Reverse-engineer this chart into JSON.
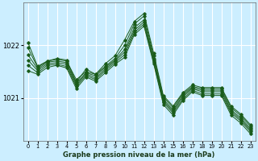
{
  "title": "Graphe pression niveau de la mer (hPa)",
  "bg_color": "#cceeff",
  "grid_color": "#ffffff",
  "line_color": "#1a5c1a",
  "x_ticks": [
    0,
    1,
    2,
    3,
    4,
    5,
    6,
    7,
    8,
    9,
    10,
    11,
    12,
    13,
    14,
    15,
    16,
    17,
    18,
    19,
    20,
    21,
    22,
    23
  ],
  "ylim": [
    1020.2,
    1022.8
  ],
  "yticks": [
    1021.0,
    1022.0
  ],
  "series": [
    [
      1022.05,
      1021.6,
      1021.7,
      1021.75,
      1021.72,
      1021.3,
      1021.55,
      1021.45,
      1021.65,
      1021.8,
      1022.1,
      1022.45,
      1022.6,
      1021.85,
      1021.05,
      1020.85,
      1021.1,
      1021.25,
      1021.2,
      1021.2,
      1021.2,
      1020.85,
      1020.7,
      1020.5
    ],
    [
      1021.95,
      1021.58,
      1021.7,
      1021.73,
      1021.7,
      1021.35,
      1021.5,
      1021.45,
      1021.6,
      1021.75,
      1022.0,
      1022.4,
      1022.55,
      1021.8,
      1021.02,
      1020.82,
      1021.08,
      1021.22,
      1021.18,
      1021.18,
      1021.18,
      1020.82,
      1020.67,
      1020.47
    ],
    [
      1021.82,
      1021.55,
      1021.68,
      1021.7,
      1021.67,
      1021.28,
      1021.48,
      1021.42,
      1021.58,
      1021.72,
      1021.92,
      1022.33,
      1022.48,
      1021.75,
      1020.98,
      1020.78,
      1021.05,
      1021.2,
      1021.15,
      1021.15,
      1021.15,
      1020.78,
      1020.63,
      1020.43
    ],
    [
      1021.72,
      1021.52,
      1021.65,
      1021.67,
      1021.64,
      1021.25,
      1021.46,
      1021.38,
      1021.55,
      1021.7,
      1021.87,
      1022.28,
      1022.44,
      1021.72,
      1020.95,
      1020.75,
      1021.02,
      1021.18,
      1021.12,
      1021.12,
      1021.12,
      1020.75,
      1020.6,
      1020.4
    ],
    [
      1021.62,
      1021.48,
      1021.62,
      1021.64,
      1021.6,
      1021.22,
      1021.43,
      1021.35,
      1021.52,
      1021.67,
      1021.82,
      1022.24,
      1022.4,
      1021.68,
      1020.92,
      1020.72,
      1020.98,
      1021.15,
      1021.08,
      1021.08,
      1021.08,
      1020.72,
      1020.57,
      1020.37
    ],
    [
      1021.52,
      1021.45,
      1021.58,
      1021.62,
      1021.57,
      1021.18,
      1021.4,
      1021.32,
      1021.48,
      1021.64,
      1021.77,
      1022.2,
      1022.36,
      1021.65,
      1020.88,
      1020.68,
      1020.95,
      1021.12,
      1021.05,
      1021.05,
      1021.05,
      1020.68,
      1020.53,
      1020.33
    ]
  ]
}
